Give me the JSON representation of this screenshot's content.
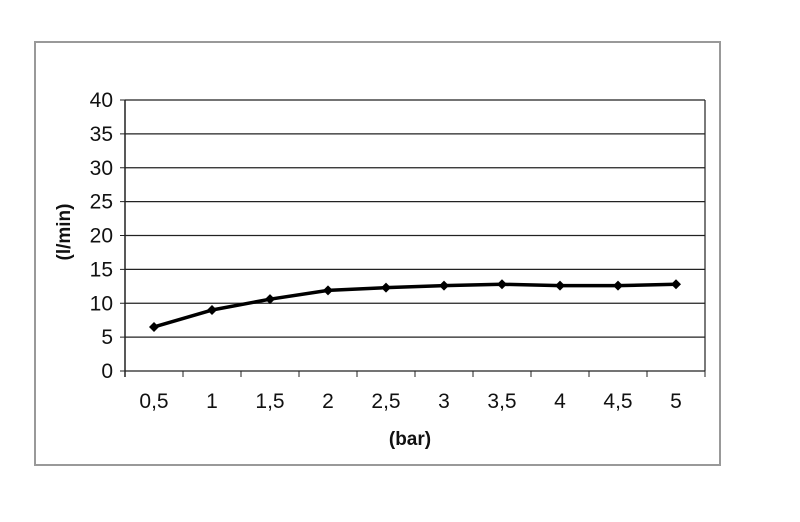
{
  "chart_data": {
    "type": "line",
    "title": "",
    "xlabel": "(bar)",
    "ylabel": "(l/min)",
    "categories": [
      "0,5",
      "1",
      "1,5",
      "2",
      "2,5",
      "3",
      "3,5",
      "4",
      "4,5",
      "5"
    ],
    "series": [
      {
        "values": [
          6.5,
          9.0,
          10.6,
          11.9,
          12.3,
          12.6,
          12.8,
          12.6,
          12.6,
          12.8
        ],
        "color": "#000000"
      }
    ],
    "ylim": [
      0,
      40
    ],
    "yticks": [
      0,
      5,
      10,
      15,
      20,
      25,
      30,
      35,
      40
    ],
    "grid": true,
    "legend": "none"
  }
}
